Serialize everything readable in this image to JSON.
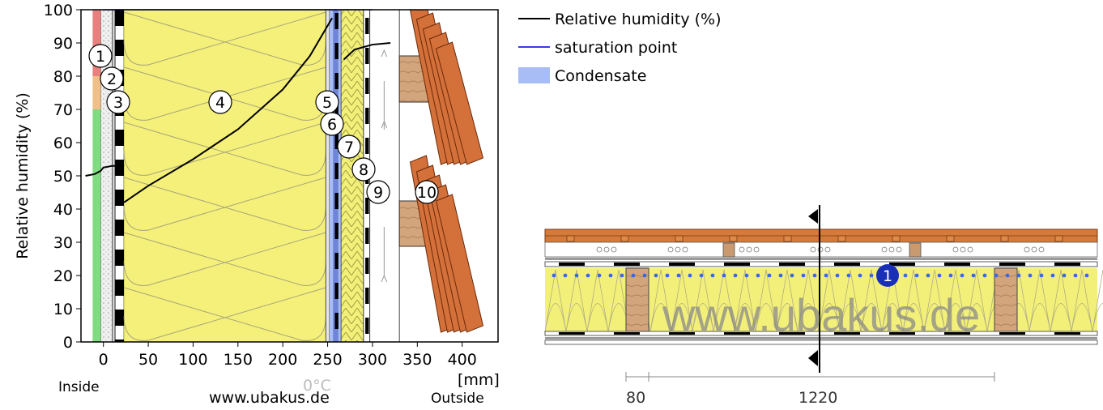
{
  "chart_data": {
    "type": "line",
    "ylabel": "Relative humidity (%)",
    "x_unit": "[mm]",
    "ylim": [
      0,
      100
    ],
    "xlim": [
      -25,
      440
    ],
    "x_ticks": [
      0,
      50,
      100,
      150,
      200,
      250,
      300,
      350,
      400
    ],
    "y_ticks": [
      0,
      10,
      20,
      30,
      40,
      50,
      60,
      70,
      80,
      90,
      100
    ],
    "series": [
      {
        "name": "Relative humidity (%)",
        "color": "#000000",
        "segments": [
          [
            [
              -20,
              50
            ],
            [
              -10,
              50.5
            ],
            [
              -3,
              51.5
            ],
            [
              0,
              52.5
            ],
            [
              10,
              53
            ],
            [
              23,
              53
            ]
          ],
          [
            [
              23,
              42
            ],
            [
              50,
              47
            ],
            [
              100,
              55
            ],
            [
              150,
              64
            ],
            [
              200,
              76
            ],
            [
              230,
              86
            ],
            [
              255,
              97.5
            ]
          ],
          [
            [
              268,
              85
            ],
            [
              280,
              88
            ],
            [
              300,
              89.5
            ],
            [
              320,
              90
            ]
          ]
        ]
      },
      {
        "name": "saturation point",
        "color": "#3a3af0",
        "segments": [
          [
            [
              0,
              100
            ],
            [
              300,
              100
            ]
          ]
        ]
      }
    ],
    "legend": [
      {
        "label": "Relative humidity (%)",
        "kind": "line",
        "color": "#000000"
      },
      {
        "label": "saturation point",
        "kind": "line",
        "color": "#3a3af0"
      },
      {
        "label": "Condensate",
        "kind": "box",
        "color": "#a8bcf5"
      }
    ],
    "comfort_bands": [
      {
        "from": 80,
        "to": 100,
        "color": "#e88080"
      },
      {
        "from": 70,
        "to": 80,
        "color": "#f0c088"
      },
      {
        "from": 0,
        "to": 70,
        "color": "#80dc80"
      }
    ],
    "layer_numbers": [
      "1",
      "2",
      "3",
      "4",
      "5",
      "6",
      "7",
      "8",
      "9",
      "10"
    ],
    "zero_marker": "0°C",
    "inside_label": "Inside",
    "outside_label": "Outside",
    "watermark": "www.ubakus.de"
  },
  "section": {
    "watermark": "www.ubakus.de",
    "marker_number": "1",
    "dim_labels": [
      "80",
      "1220"
    ]
  }
}
